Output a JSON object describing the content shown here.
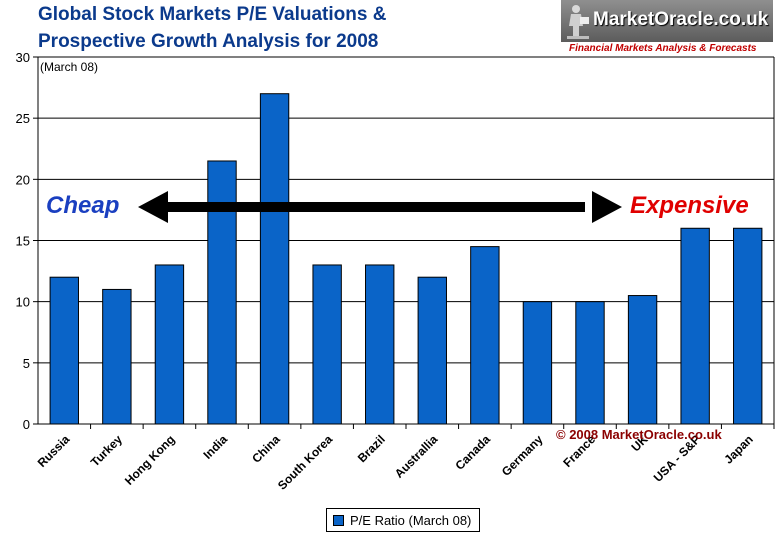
{
  "colors": {
    "bar": "#0a64c8",
    "title": "#0b3a8c",
    "cheap": "#1a3fc0",
    "expensive": "#e00000",
    "copyright": "#8b0000",
    "logo_tagline": "#c00000"
  },
  "logo": {
    "brand": "MarketOracle.co.uk",
    "tagline": "Financial Markets Analysis & Forecasts",
    "figure_icon": "reading-figure-icon"
  },
  "chart_data": {
    "type": "bar",
    "title_line1": "Global Stock Markets P/E Valuations &",
    "title_line2": "Prospective Growth  Analysis for  2008",
    "subtitle": "(March 08)",
    "categories": [
      "Russia",
      "Turkey",
      "Hong Kong",
      "India",
      "China",
      "South Korea",
      "Brazil",
      "Australlia",
      "Canada",
      "Germany",
      "France",
      "UK",
      "USA - S&P",
      "Japan"
    ],
    "series": [
      {
        "name": "P/E Ratio (March 08)",
        "values": [
          12,
          11,
          13,
          21.5,
          27,
          13,
          13,
          12,
          14.5,
          10,
          10,
          10.5,
          16,
          16
        ]
      }
    ],
    "ylim": [
      0,
      30
    ],
    "yticks": [
      0,
      5,
      10,
      15,
      20,
      25,
      30
    ],
    "grid": true,
    "legend": "bottom-center",
    "xlabel": "",
    "ylabel": "",
    "annotations": {
      "cheap": "Cheap",
      "expensive": "Expensive",
      "copyright": "© 2008 MarketOracle.co.uk"
    }
  }
}
